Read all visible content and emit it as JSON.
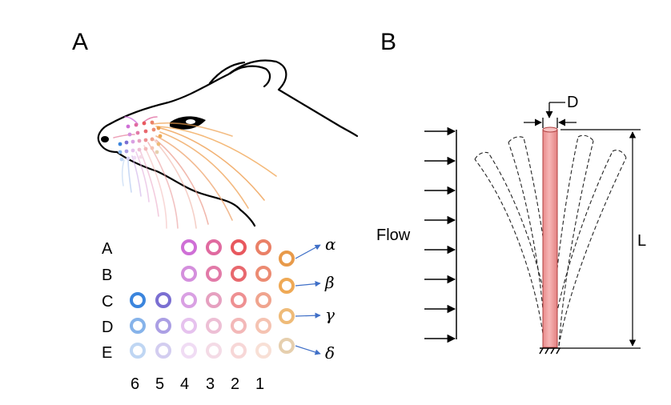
{
  "panel_a": {
    "letter": "A",
    "rows": [
      "A",
      "B",
      "C",
      "D",
      "E"
    ],
    "columns": [
      "6",
      "5",
      "4",
      "3",
      "2",
      "1"
    ],
    "greek_whiskers": [
      {
        "label": "α",
        "color": "#e89a4a"
      },
      {
        "label": "β",
        "color": "#efa955"
      },
      {
        "label": "γ",
        "color": "#efbb78"
      },
      {
        "label": "δ",
        "color": "#e6cfae"
      }
    ],
    "grid": [
      {
        "row": "A",
        "col": "4",
        "color": "#cf6fd6"
      },
      {
        "row": "A",
        "col": "3",
        "color": "#e06aa0"
      },
      {
        "row": "A",
        "col": "2",
        "color": "#e8585e"
      },
      {
        "row": "A",
        "col": "1",
        "color": "#ea8067"
      },
      {
        "row": "B",
        "col": "4",
        "color": "#d48fdd"
      },
      {
        "row": "B",
        "col": "3",
        "color": "#e27aa8"
      },
      {
        "row": "B",
        "col": "2",
        "color": "#e8686e"
      },
      {
        "row": "B",
        "col": "1",
        "color": "#ec8b72"
      },
      {
        "row": "C",
        "col": "6",
        "color": "#3b85dd"
      },
      {
        "row": "C",
        "col": "5",
        "color": "#7b6fd2"
      },
      {
        "row": "C",
        "col": "4",
        "color": "#d9a0e3"
      },
      {
        "row": "C",
        "col": "3",
        "color": "#e6a0c0"
      },
      {
        "row": "C",
        "col": "2",
        "color": "#ee9092"
      },
      {
        "row": "C",
        "col": "1",
        "color": "#f0a48e"
      },
      {
        "row": "D",
        "col": "6",
        "color": "#86b3ea"
      },
      {
        "row": "D",
        "col": "5",
        "color": "#ab9fe4"
      },
      {
        "row": "D",
        "col": "4",
        "color": "#e6c2ee"
      },
      {
        "row": "D",
        "col": "3",
        "color": "#edbfd5"
      },
      {
        "row": "D",
        "col": "2",
        "color": "#f3b8b8"
      },
      {
        "row": "D",
        "col": "1",
        "color": "#f5c3b2"
      },
      {
        "row": "E",
        "col": "6",
        "color": "#bfd6f3"
      },
      {
        "row": "E",
        "col": "5",
        "color": "#d3cdf0"
      },
      {
        "row": "E",
        "col": "4",
        "color": "#f0dcf4"
      },
      {
        "row": "E",
        "col": "3",
        "color": "#f4dbe6"
      },
      {
        "row": "E",
        "col": "2",
        "color": "#f7d7d7"
      },
      {
        "row": "E",
        "col": "1",
        "color": "#f8e0d6"
      }
    ],
    "arrow_color": "#3f6fc7"
  },
  "panel_b": {
    "letter": "B",
    "flow_label": "Flow",
    "diameter_label": "D",
    "length_label": "L",
    "cylinder_color": "#f0a3a3",
    "cylinder_edge": "#b04040"
  }
}
